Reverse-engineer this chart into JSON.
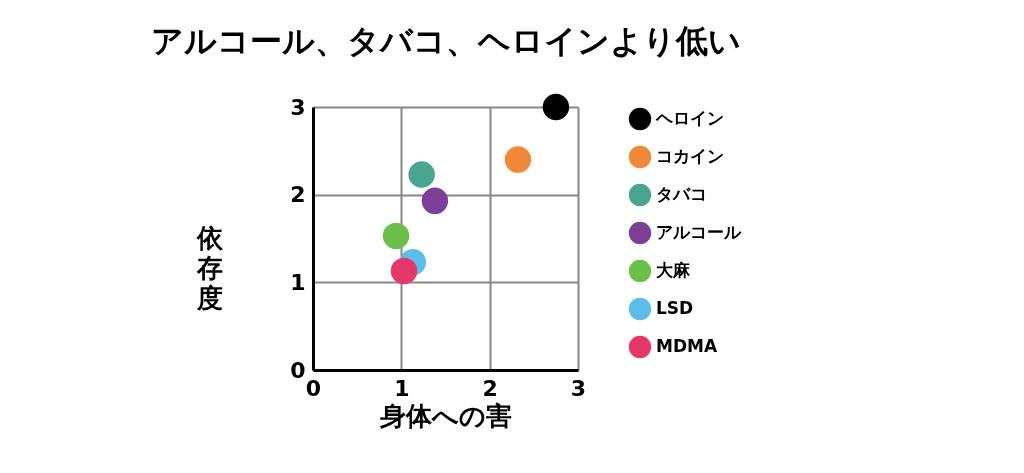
{
  "chart_data": {
    "type": "scatter",
    "title": "アルコール、タバコ、ヘロインより低い",
    "xlabel": "身体への害",
    "ylabel": "依存度",
    "xlim": [
      0,
      3
    ],
    "ylim": [
      0,
      3
    ],
    "xticks": [
      0,
      1,
      2,
      3
    ],
    "yticks": [
      0,
      1,
      2,
      3
    ],
    "grid": true,
    "legend": "right",
    "marker": "circle",
    "series": [
      {
        "name": "ヘロイン",
        "color": "#000000",
        "x": [
          2.75
        ],
        "values": [
          3.0
        ]
      },
      {
        "name": "コカイン",
        "color": "#f0883a",
        "x": [
          2.32
        ],
        "values": [
          2.4
        ]
      },
      {
        "name": "タバコ",
        "color": "#4aa590",
        "x": [
          1.23
        ],
        "values": [
          2.23
        ]
      },
      {
        "name": "アルコール",
        "color": "#7d3f98",
        "x": [
          1.38
        ],
        "values": [
          1.93
        ]
      },
      {
        "name": "大麻",
        "color": "#6cc04a",
        "x": [
          0.94
        ],
        "values": [
          1.53
        ]
      },
      {
        "name": "LSD",
        "color": "#5bbde8",
        "x": [
          1.13
        ],
        "values": [
          1.23
        ]
      },
      {
        "name": "MDMA",
        "color": "#e5386a",
        "x": [
          1.03
        ],
        "values": [
          1.13
        ]
      }
    ]
  }
}
